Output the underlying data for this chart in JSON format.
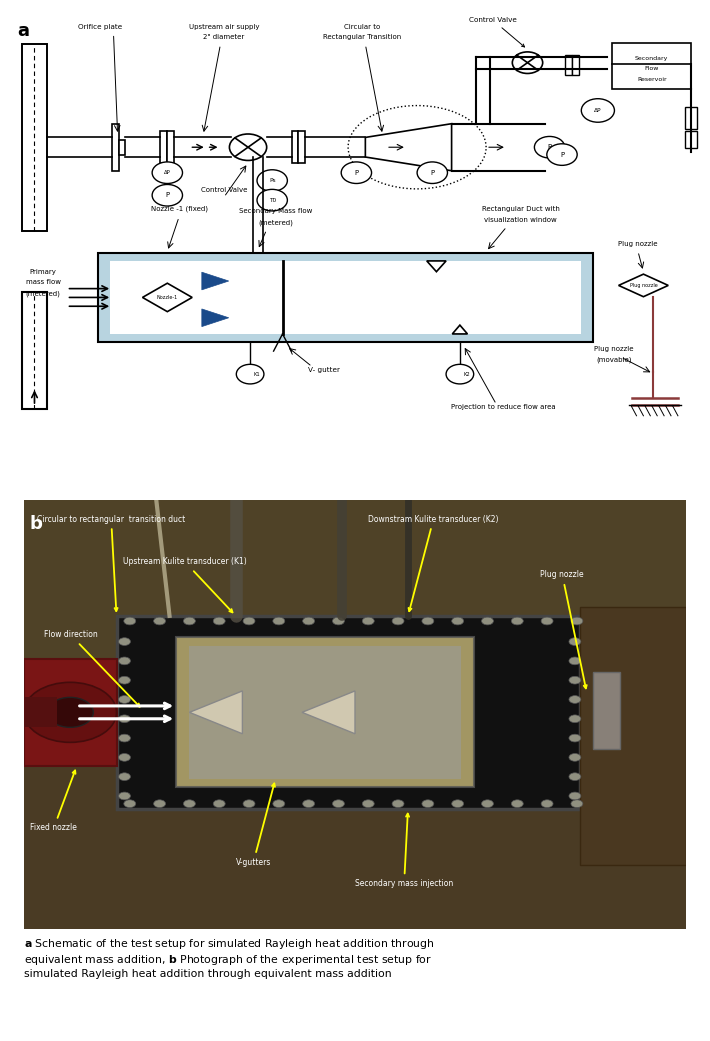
{
  "figure_width": 6.9,
  "figure_height": 10.21,
  "background_color": "#ffffff",
  "duct_fill": "#b8d4e0",
  "blue_arrow_color": "#1a4a8a",
  "red_stem_color": "#8b3a3a"
}
